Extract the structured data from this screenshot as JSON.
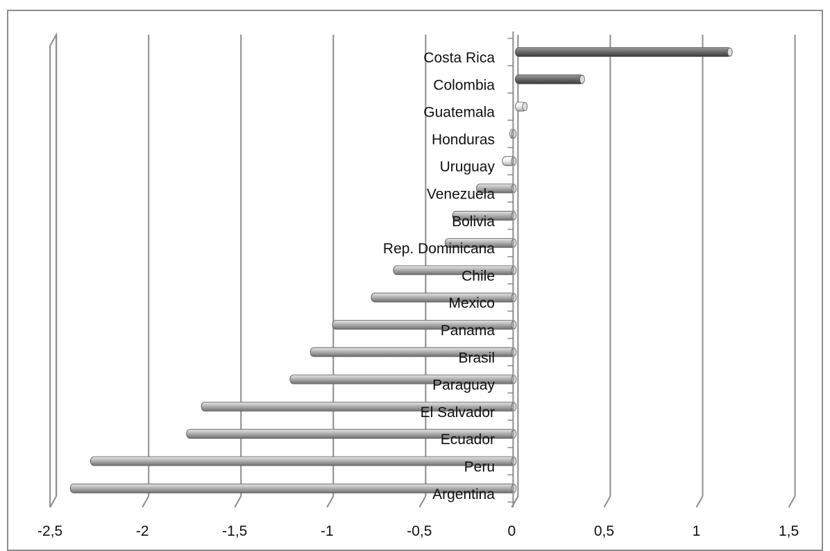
{
  "chart_data": {
    "type": "bar",
    "orientation": "horizontal",
    "title": "",
    "xlabel": "",
    "ylabel": "",
    "xlim": [
      -2.5,
      1.5
    ],
    "x_ticks": [
      -2.5,
      -2,
      -1.5,
      -1,
      -0.5,
      0,
      0.5,
      1,
      1.5
    ],
    "x_tick_labels": [
      "-2,5",
      "-2",
      "-1,5",
      "-1",
      "-0,5",
      "0",
      "0,5",
      "1",
      "1,5"
    ],
    "grid": "vertical major gridlines",
    "legend": "none",
    "categories": [
      "Costa Rica",
      "Colombia",
      "Guatemala",
      "Honduras",
      "Uruguay",
      "Venezuela",
      "Bolivia",
      "Rep. Dominicana",
      "Chile",
      "Mexico",
      "Panama",
      "Brasil",
      "Paraguay",
      "El Salvador",
      "Ecuador",
      "Peru",
      "Argentina"
    ],
    "values": [
      1.17,
      0.37,
      0.06,
      -0.03,
      -0.07,
      -0.21,
      -0.34,
      -0.38,
      -0.66,
      -0.78,
      -0.99,
      -1.11,
      -1.22,
      -1.7,
      -1.78,
      -2.3,
      -2.41
    ],
    "bar_colors": [
      "#6e6e6e",
      "#6e6e6e",
      "#e8e8e8",
      "#e8e8e8",
      "#e8e8e8",
      "#a6a6a6",
      "#a6a6a6",
      "#a6a6a6",
      "#a6a6a6",
      "#a6a6a6",
      "#a6a6a6",
      "#a6a6a6",
      "#a6a6a6",
      "#a6a6a6",
      "#a6a6a6",
      "#a6a6a6",
      "#a6a6a6"
    ]
  }
}
